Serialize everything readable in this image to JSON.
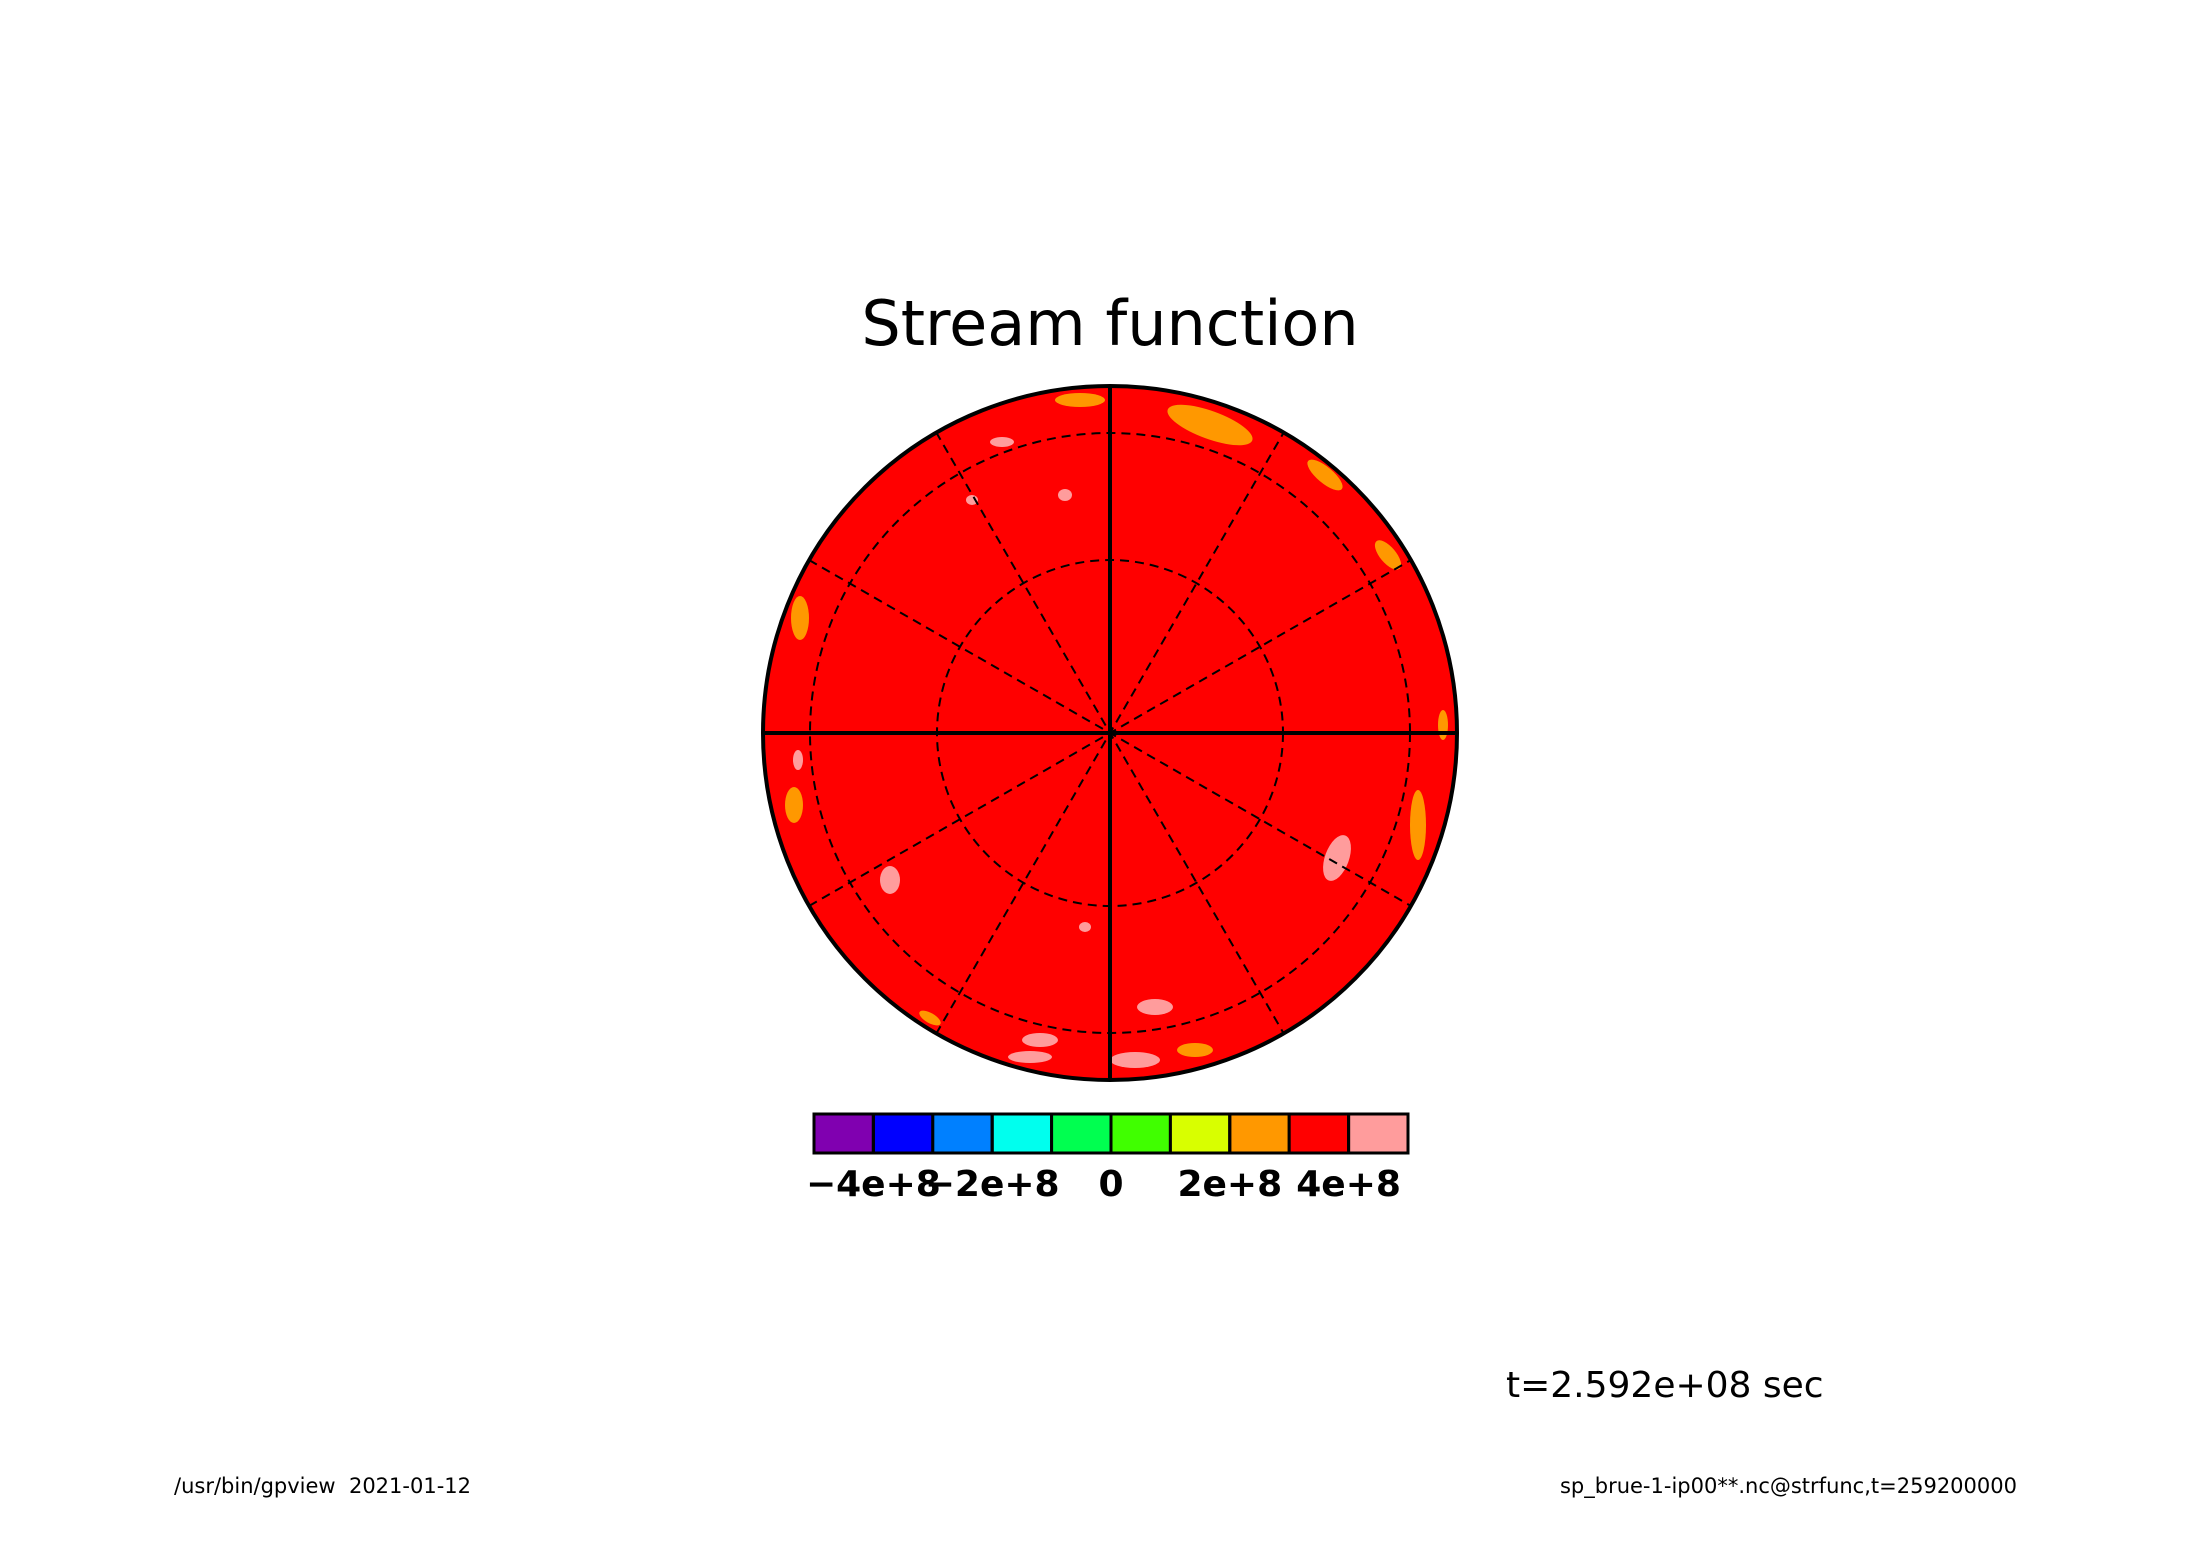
{
  "chart_data": {
    "type": "polar-contour",
    "title": "Stream function",
    "fill_color": "#ff0000",
    "colorbar": {
      "levels": [
        -500000000,
        -400000000,
        -300000000,
        -200000000,
        -100000000,
        0,
        100000000,
        200000000,
        300000000,
        400000000,
        500000000
      ],
      "colors": [
        "#8000b0",
        "#0000ff",
        "#0080ff",
        "#00ffee",
        "#00ff50",
        "#40ff00",
        "#d8ff00",
        "#ff9800",
        "#ff0000",
        "#ff9c9c"
      ],
      "ticks": [
        {
          "value": -400000000,
          "label": "−4e+8"
        },
        {
          "value": -200000000,
          "label": "−2e+8"
        },
        0,
        {
          "value": 200000000,
          "label": "2e+8"
        },
        {
          "value": 400000000,
          "label": "4e+8"
        }
      ]
    },
    "annotations": [
      "t=2.592e+08 sec",
      "/usr/bin/gpview  2021-01-12",
      "sp_brue-1-ip00**.nc@strfunc,t=259200000"
    ]
  }
}
